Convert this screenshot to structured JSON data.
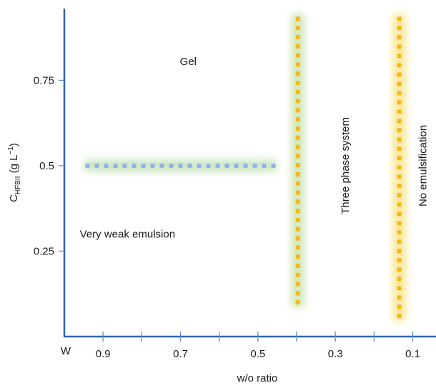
{
  "chart_data": {
    "type": "scatter",
    "title": "",
    "xlabel": "w/o ratio",
    "ylabel": {
      "main": "C",
      "subscript": "HFBII",
      "unit": " (g L",
      "superscript": "−1",
      "close": ")"
    },
    "x_reversed": true,
    "xlim": [
      1.0,
      0.04
    ],
    "ylim": [
      0.0,
      0.96
    ],
    "x_ticks": [
      {
        "value": 0.9,
        "label": "0.9"
      },
      {
        "value": 0.7,
        "label": "0.7"
      },
      {
        "value": 0.5,
        "label": "0.5"
      },
      {
        "value": 0.3,
        "label": "0.3"
      },
      {
        "value": 0.1,
        "label": "0.1"
      }
    ],
    "x_minor_ticks": [
      0.8,
      0.6,
      0.4,
      0.2
    ],
    "x_extra_label": "W",
    "y_ticks": [
      {
        "value": 0.25,
        "label": "0.25"
      },
      {
        "value": 0.5,
        "label": "0.5"
      },
      {
        "value": 0.75,
        "label": "0.75"
      }
    ],
    "grid": false,
    "colors": {
      "axis": "#2e66a8",
      "tick": "#5b8cc8",
      "blue_marker": "#8fb4e6",
      "blue_glow": "#cfe6c6",
      "orange_marker": "#f6b619",
      "green_glow": "#d4e8bc",
      "yellow_glow": "#fbeaa0"
    },
    "boundaries": [
      {
        "orientation": "horizontal",
        "at": 0.5,
        "from": 0.94,
        "to": 0.46,
        "marker_color": "#8fb4e6",
        "glow_color": "#cfe6c6"
      },
      {
        "orientation": "vertical",
        "at": 0.397,
        "from": 0.1,
        "to": 0.93,
        "marker_color": "#f6b619",
        "glow_color": "#d4e8bc"
      },
      {
        "orientation": "vertical",
        "at": 0.135,
        "from": 0.06,
        "to": 0.93,
        "marker_color": "#f6b619",
        "glow_color": "#fbeaa0"
      }
    ],
    "regions": [
      {
        "text": "Gel",
        "x": 0.68,
        "y": 0.795,
        "rotate": false,
        "anchor": "middle"
      },
      {
        "text": "Very weak emulsion",
        "x": 0.96,
        "y": 0.29,
        "rotate": false,
        "anchor": "start"
      },
      {
        "text": "Three phase system",
        "x": 0.265,
        "y": 0.5,
        "rotate": true,
        "anchor": "middle"
      },
      {
        "text": "No emulsification",
        "x": 0.065,
        "y": 0.5,
        "rotate": true,
        "anchor": "middle"
      }
    ]
  }
}
